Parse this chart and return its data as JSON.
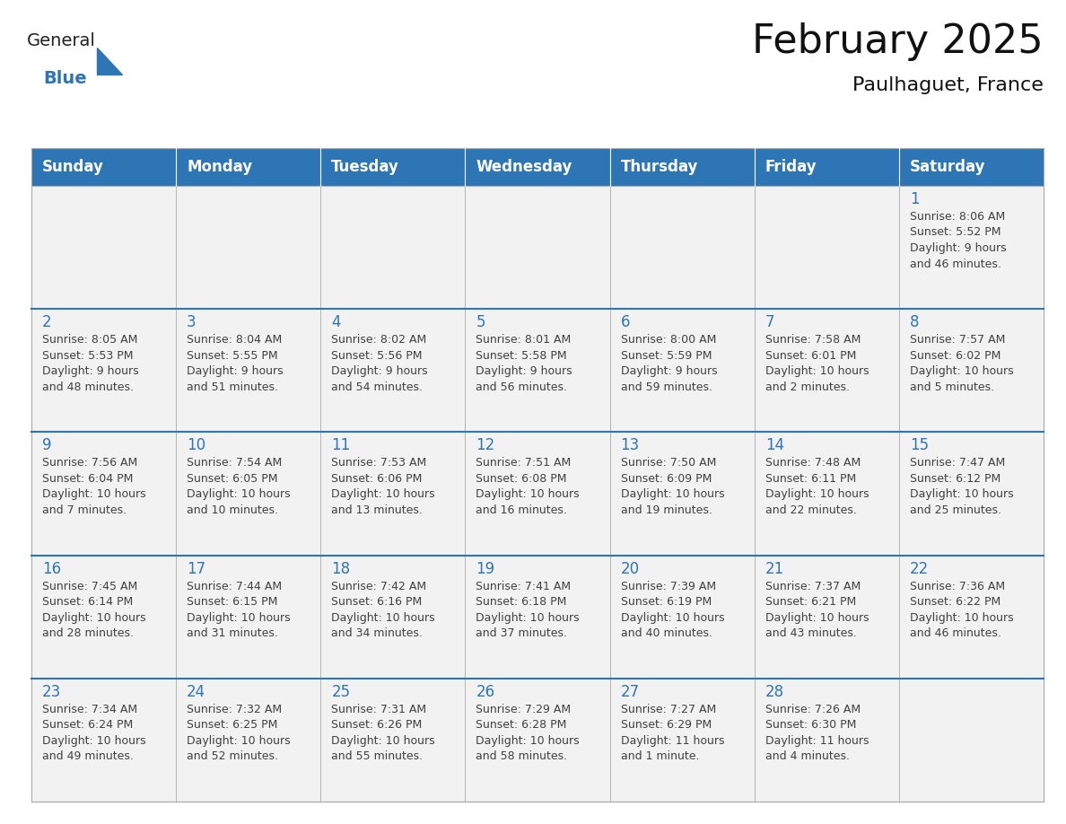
{
  "title": "February 2025",
  "subtitle": "Paulhaguet, France",
  "header_bg": "#2E75B6",
  "header_text_color": "#FFFFFF",
  "cell_bg_odd": "#F2F2F2",
  "cell_bg_even": "#FFFFFF",
  "day_number_color": "#2E75B6",
  "text_color": "#404040",
  "border_color": "#AAAAAA",
  "week_divider_color": "#2E75B6",
  "days_of_week": [
    "Sunday",
    "Monday",
    "Tuesday",
    "Wednesday",
    "Thursday",
    "Friday",
    "Saturday"
  ],
  "calendar": [
    [
      null,
      null,
      null,
      null,
      null,
      null,
      {
        "day": "1",
        "sunrise": "8:06 AM",
        "sunset": "5:52 PM",
        "daylight1": "9 hours",
        "daylight2": "and 46 minutes."
      }
    ],
    [
      {
        "day": "2",
        "sunrise": "8:05 AM",
        "sunset": "5:53 PM",
        "daylight1": "9 hours",
        "daylight2": "and 48 minutes."
      },
      {
        "day": "3",
        "sunrise": "8:04 AM",
        "sunset": "5:55 PM",
        "daylight1": "9 hours",
        "daylight2": "and 51 minutes."
      },
      {
        "day": "4",
        "sunrise": "8:02 AM",
        "sunset": "5:56 PM",
        "daylight1": "9 hours",
        "daylight2": "and 54 minutes."
      },
      {
        "day": "5",
        "sunrise": "8:01 AM",
        "sunset": "5:58 PM",
        "daylight1": "9 hours",
        "daylight2": "and 56 minutes."
      },
      {
        "day": "6",
        "sunrise": "8:00 AM",
        "sunset": "5:59 PM",
        "daylight1": "9 hours",
        "daylight2": "and 59 minutes."
      },
      {
        "day": "7",
        "sunrise": "7:58 AM",
        "sunset": "6:01 PM",
        "daylight1": "10 hours",
        "daylight2": "and 2 minutes."
      },
      {
        "day": "8",
        "sunrise": "7:57 AM",
        "sunset": "6:02 PM",
        "daylight1": "10 hours",
        "daylight2": "and 5 minutes."
      }
    ],
    [
      {
        "day": "9",
        "sunrise": "7:56 AM",
        "sunset": "6:04 PM",
        "daylight1": "10 hours",
        "daylight2": "and 7 minutes."
      },
      {
        "day": "10",
        "sunrise": "7:54 AM",
        "sunset": "6:05 PM",
        "daylight1": "10 hours",
        "daylight2": "and 10 minutes."
      },
      {
        "day": "11",
        "sunrise": "7:53 AM",
        "sunset": "6:06 PM",
        "daylight1": "10 hours",
        "daylight2": "and 13 minutes."
      },
      {
        "day": "12",
        "sunrise": "7:51 AM",
        "sunset": "6:08 PM",
        "daylight1": "10 hours",
        "daylight2": "and 16 minutes."
      },
      {
        "day": "13",
        "sunrise": "7:50 AM",
        "sunset": "6:09 PM",
        "daylight1": "10 hours",
        "daylight2": "and 19 minutes."
      },
      {
        "day": "14",
        "sunrise": "7:48 AM",
        "sunset": "6:11 PM",
        "daylight1": "10 hours",
        "daylight2": "and 22 minutes."
      },
      {
        "day": "15",
        "sunrise": "7:47 AM",
        "sunset": "6:12 PM",
        "daylight1": "10 hours",
        "daylight2": "and 25 minutes."
      }
    ],
    [
      {
        "day": "16",
        "sunrise": "7:45 AM",
        "sunset": "6:14 PM",
        "daylight1": "10 hours",
        "daylight2": "and 28 minutes."
      },
      {
        "day": "17",
        "sunrise": "7:44 AM",
        "sunset": "6:15 PM",
        "daylight1": "10 hours",
        "daylight2": "and 31 minutes."
      },
      {
        "day": "18",
        "sunrise": "7:42 AM",
        "sunset": "6:16 PM",
        "daylight1": "10 hours",
        "daylight2": "and 34 minutes."
      },
      {
        "day": "19",
        "sunrise": "7:41 AM",
        "sunset": "6:18 PM",
        "daylight1": "10 hours",
        "daylight2": "and 37 minutes."
      },
      {
        "day": "20",
        "sunrise": "7:39 AM",
        "sunset": "6:19 PM",
        "daylight1": "10 hours",
        "daylight2": "and 40 minutes."
      },
      {
        "day": "21",
        "sunrise": "7:37 AM",
        "sunset": "6:21 PM",
        "daylight1": "10 hours",
        "daylight2": "and 43 minutes."
      },
      {
        "day": "22",
        "sunrise": "7:36 AM",
        "sunset": "6:22 PM",
        "daylight1": "10 hours",
        "daylight2": "and 46 minutes."
      }
    ],
    [
      {
        "day": "23",
        "sunrise": "7:34 AM",
        "sunset": "6:24 PM",
        "daylight1": "10 hours",
        "daylight2": "and 49 minutes."
      },
      {
        "day": "24",
        "sunrise": "7:32 AM",
        "sunset": "6:25 PM",
        "daylight1": "10 hours",
        "daylight2": "and 52 minutes."
      },
      {
        "day": "25",
        "sunrise": "7:31 AM",
        "sunset": "6:26 PM",
        "daylight1": "10 hours",
        "daylight2": "and 55 minutes."
      },
      {
        "day": "26",
        "sunrise": "7:29 AM",
        "sunset": "6:28 PM",
        "daylight1": "10 hours",
        "daylight2": "and 58 minutes."
      },
      {
        "day": "27",
        "sunrise": "7:27 AM",
        "sunset": "6:29 PM",
        "daylight1": "11 hours",
        "daylight2": "and 1 minute."
      },
      {
        "day": "28",
        "sunrise": "7:26 AM",
        "sunset": "6:30 PM",
        "daylight1": "11 hours",
        "daylight2": "and 4 minutes."
      },
      null
    ]
  ],
  "title_fontsize": 32,
  "subtitle_fontsize": 16,
  "header_fontsize": 12,
  "day_num_fontsize": 12,
  "cell_text_fontsize": 9
}
